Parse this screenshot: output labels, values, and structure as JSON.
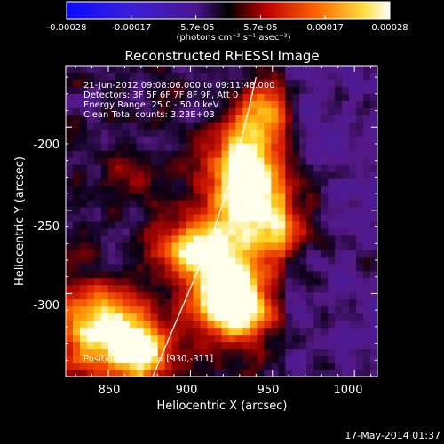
{
  "colorbar": {
    "ticks": [
      "-0.00028",
      "-0.00017",
      "-5.7e-05",
      "5.7e-05",
      "0.00017",
      "0.00028"
    ],
    "unit": "(photons cm⁻² s⁻¹ asec⁻²)"
  },
  "plot": {
    "title": "Reconstructed RHESSI Image",
    "xlabel": "Heliocentric X (arcsec)",
    "ylabel": "Heliocentric Y (arcsec)",
    "xticks": [
      "850",
      "900",
      "950",
      "1000"
    ],
    "yticks": [
      "-200",
      "-250",
      "-300"
    ],
    "info": [
      "21-Jun-2012 09:08:06.000 to 09:11:48.000",
      "Detectors: 3F 5F 6F 7F 8F 9F, Att 0",
      "Energy Range: 25.0 - 50.0 keV",
      "Clean     Total counts: 3.23E+03"
    ],
    "peak_label": "Position of Peak = [930,-311]"
  },
  "footer": {
    "timestamp": "17-May-2014 01:37"
  },
  "chart_data": {
    "type": "heatmap",
    "title": "Reconstructed RHESSI Image",
    "xlabel": "Heliocentric X (arcsec)",
    "ylabel": "Heliocentric Y (arcsec)",
    "xlim": [
      824,
      1014
    ],
    "ylim": [
      -350,
      -163
    ],
    "colorbar_range": [
      -0.00028,
      0.00028
    ],
    "colormap": "blue-purple-red-yellow-white",
    "peak": [
      930,
      -311
    ],
    "limb_curve": [
      [
        877,
        -350
      ],
      [
        890,
        -320
      ],
      [
        903,
        -290
      ],
      [
        915,
        -260
      ],
      [
        925,
        -230
      ],
      [
        933,
        -200
      ],
      [
        940,
        -170
      ]
    ]
  }
}
